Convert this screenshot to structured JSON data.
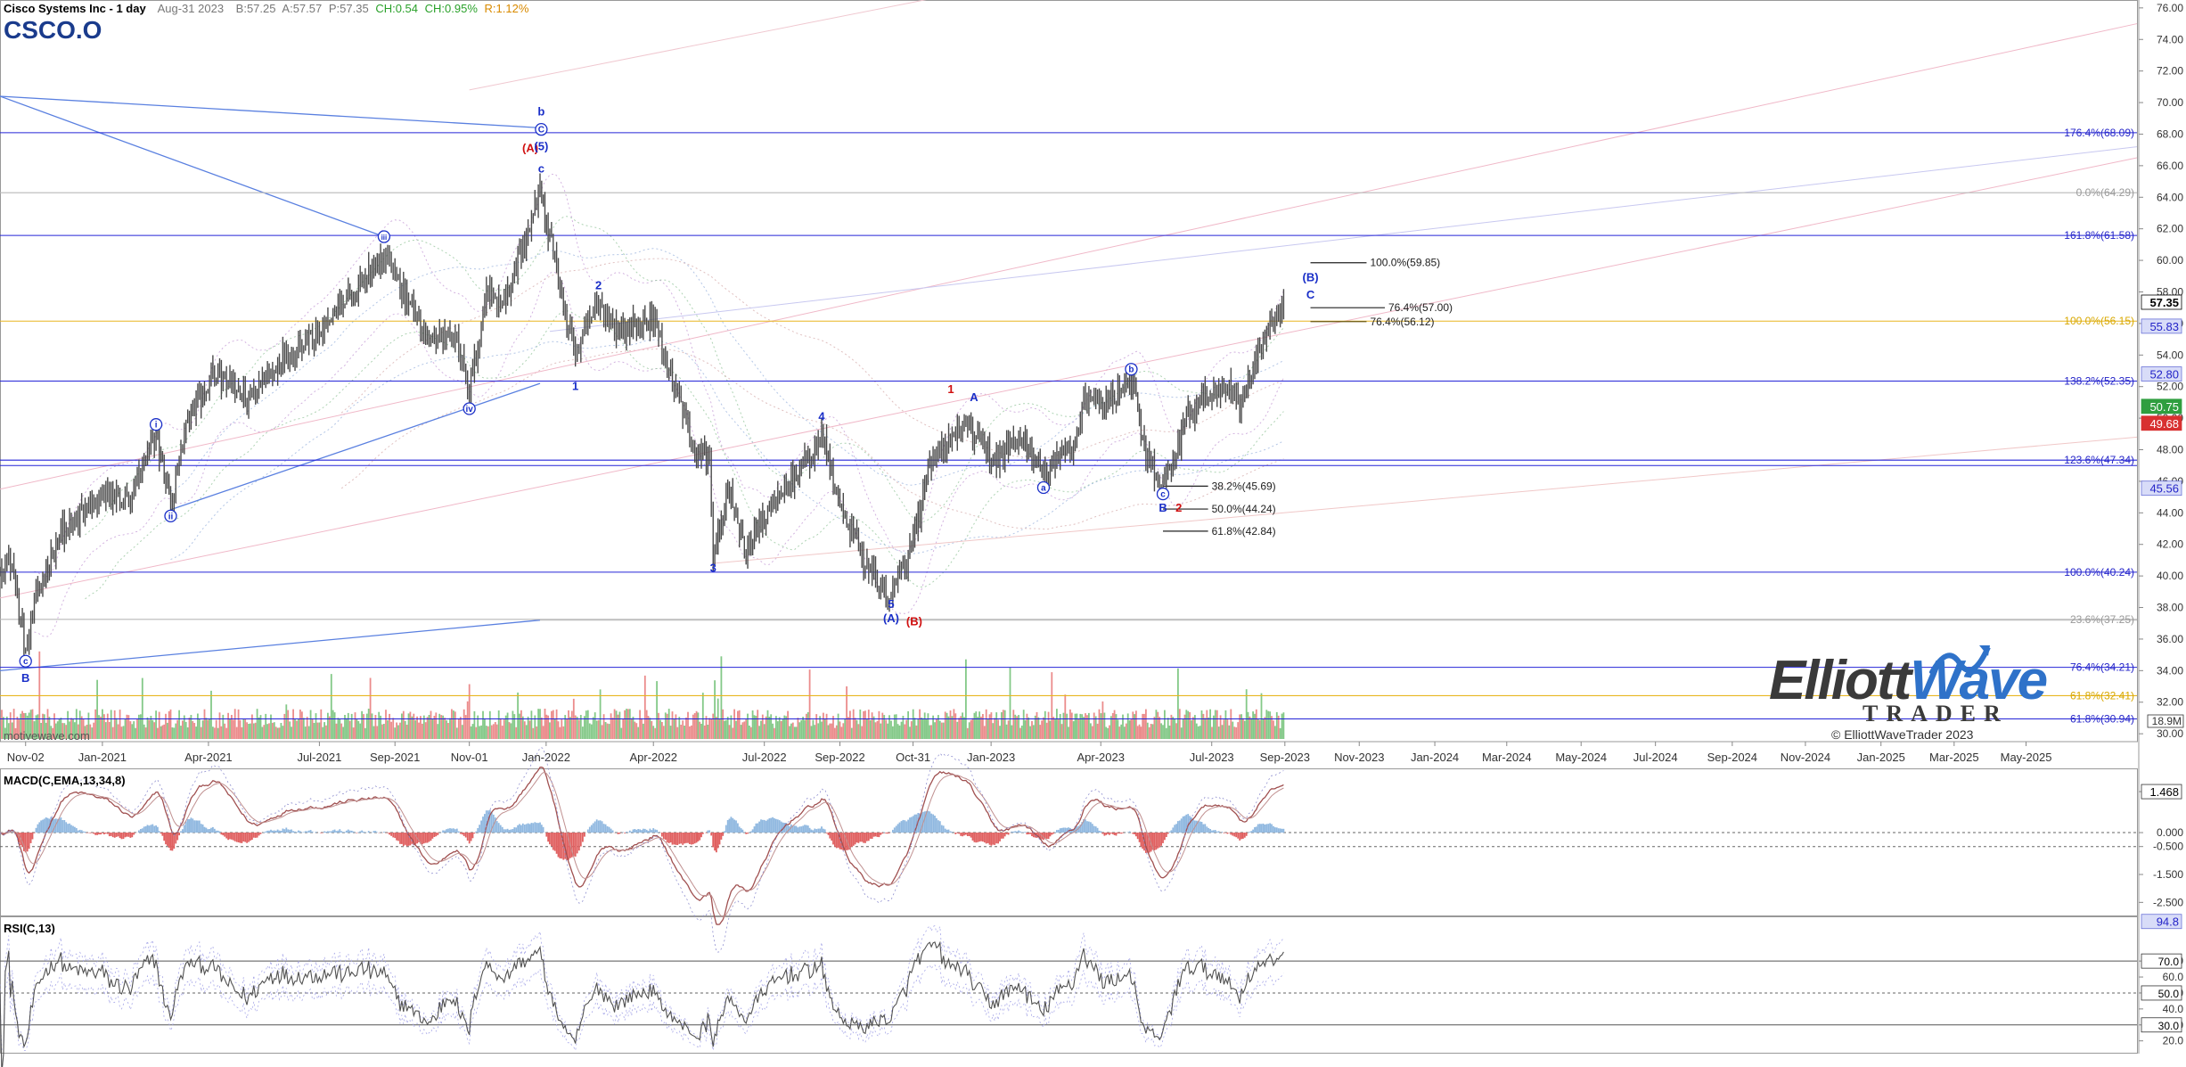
{
  "header": {
    "title": "Cisco Systems Inc - 1 day",
    "date": "Aug-31 2023",
    "bid": "B:57.25",
    "ask": "A:57.57",
    "price": "P:57.35",
    "change": "CH:0.54",
    "change_pct": "CH:0.95%",
    "range": "R:1.12%",
    "symbol": "CSCO.O"
  },
  "watermark": "motivewave.com",
  "logo": {
    "main_a": "Elliott",
    "main_b": "Wave",
    "sub": "TRADER",
    "copyright": "© ElliottWaveTrader 2023"
  },
  "colors": {
    "up": "#6fbf73",
    "down": "#e87878",
    "fib": "#2424d8",
    "fib_gold": "#e8b620",
    "price": "#4a4a4a",
    "wave_blue": "#1a2fc8",
    "wave_red": "#d01010"
  },
  "chart_data": [
    {
      "type": "candlestick",
      "title": "Cisco Systems Inc - 1 day",
      "x_ticks": [
        "Nov-02",
        "Jan-2021",
        "Apr-2021",
        "Jul-2021",
        "Sep-2021",
        "Nov-01",
        "Jan-2022",
        "Apr-2022",
        "Jul-2022",
        "Sep-2022",
        "Oct-31",
        "Jan-2023",
        "Apr-2023",
        "Jul-2023",
        "Sep-2023",
        "Nov-2023",
        "Jan-2024",
        "Mar-2024",
        "May-2024",
        "Jul-2024",
        "Sep-2024",
        "Nov-2024",
        "Jan-2025",
        "Mar-2025",
        "May-2025"
      ],
      "x_range": [
        "2020-10-12",
        "2025-07-31"
      ],
      "y_ticks": [
        30,
        32,
        34,
        36,
        38,
        40,
        42,
        44,
        46,
        48,
        50,
        52,
        54,
        56,
        58,
        60,
        62,
        64,
        66,
        68,
        70,
        72,
        74,
        76
      ],
      "y_range": [
        29.5,
        76.5
      ],
      "price_anchors": [
        {
          "d": "2020-10-12",
          "v": 40.3
        },
        {
          "d": "2020-10-22",
          "v": 40.8
        },
        {
          "d": "2020-10-29",
          "v": 36.9
        },
        {
          "d": "2020-11-02",
          "v": 35.0
        },
        {
          "d": "2020-11-12",
          "v": 39.0
        },
        {
          "d": "2020-12-01",
          "v": 42.8
        },
        {
          "d": "2021-01-04",
          "v": 45.0
        },
        {
          "d": "2021-01-27",
          "v": 44.8
        },
        {
          "d": "2021-02-17",
          "v": 49.0
        },
        {
          "d": "2021-03-01",
          "v": 44.4
        },
        {
          "d": "2021-03-15",
          "v": 50.0
        },
        {
          "d": "2021-04-06",
          "v": 52.8
        },
        {
          "d": "2021-05-04",
          "v": 51.2
        },
        {
          "d": "2021-06-01",
          "v": 53.8
        },
        {
          "d": "2021-07-01",
          "v": 55.6
        },
        {
          "d": "2021-08-23",
          "v": 60.2
        },
        {
          "d": "2021-09-01",
          "v": 59.0
        },
        {
          "d": "2021-09-29",
          "v": 54.8
        },
        {
          "d": "2021-10-19",
          "v": 55.8
        },
        {
          "d": "2021-11-01",
          "v": 51.6
        },
        {
          "d": "2021-11-15",
          "v": 58.0
        },
        {
          "d": "2021-12-01",
          "v": 57.5
        },
        {
          "d": "2021-12-29",
          "v": 64.3
        },
        {
          "d": "2022-01-06",
          "v": 61.5
        },
        {
          "d": "2022-01-27",
          "v": 53.6
        },
        {
          "d": "2022-02-02",
          "v": 55.3
        },
        {
          "d": "2022-02-15",
          "v": 57.4
        },
        {
          "d": "2022-03-03",
          "v": 55.5
        },
        {
          "d": "2022-04-01",
          "v": 56.3
        },
        {
          "d": "2022-05-05",
          "v": 48.0
        },
        {
          "d": "2022-05-17",
          "v": 47.5
        },
        {
          "d": "2022-05-20",
          "v": 41.0
        },
        {
          "d": "2022-06-01",
          "v": 45.5
        },
        {
          "d": "2022-06-16",
          "v": 41.6
        },
        {
          "d": "2022-07-01",
          "v": 43.8
        },
        {
          "d": "2022-08-10",
          "v": 47.8
        },
        {
          "d": "2022-08-17",
          "v": 49.0
        },
        {
          "d": "2022-09-01",
          "v": 44.5
        },
        {
          "d": "2022-09-26",
          "v": 40.2
        },
        {
          "d": "2022-10-13",
          "v": 38.7
        },
        {
          "d": "2022-10-27",
          "v": 41.0
        },
        {
          "d": "2022-11-15",
          "v": 47.2
        },
        {
          "d": "2022-12-12",
          "v": 49.6
        },
        {
          "d": "2023-01-06",
          "v": 47.4
        },
        {
          "d": "2023-01-27",
          "v": 48.8
        },
        {
          "d": "2023-02-15",
          "v": 46.4
        },
        {
          "d": "2023-03-13",
          "v": 48.5
        },
        {
          "d": "2023-03-20",
          "v": 51.2
        },
        {
          "d": "2023-04-06",
          "v": 50.8
        },
        {
          "d": "2023-04-28",
          "v": 52.6
        },
        {
          "d": "2023-05-10",
          "v": 47.4
        },
        {
          "d": "2023-05-24",
          "v": 45.5
        },
        {
          "d": "2023-06-15",
          "v": 50.4
        },
        {
          "d": "2023-07-13",
          "v": 52.2
        },
        {
          "d": "2023-07-26",
          "v": 51.0
        },
        {
          "d": "2023-08-10",
          "v": 54.2
        },
        {
          "d": "2023-08-31",
          "v": 57.35
        }
      ],
      "fib_levels": [
        {
          "label": "176.4%(68.09)",
          "value": 68.09,
          "color": "blue"
        },
        {
          "label": "0.0%(64.29)",
          "value": 64.29,
          "color": "gray"
        },
        {
          "label": "161.8%(61.58)",
          "value": 61.58,
          "color": "blue"
        },
        {
          "label": "100.0%(56.15)",
          "value": 56.15,
          "color": "gold"
        },
        {
          "label": "138.2%(52.35)",
          "value": 52.35,
          "color": "blue"
        },
        {
          "label": "123.6%(47.34)",
          "value": 47.34,
          "color": "blue"
        },
        {
          "label": "100.0%(40.24)",
          "value": 40.24,
          "color": "blue"
        },
        {
          "label": "23.6%(37.25)",
          "value": 37.25,
          "color": "gray"
        },
        {
          "label": "76.4%(34.21)",
          "value": 34.21,
          "color": "blue"
        },
        {
          "label": "61.8%(32.41)",
          "value": 32.41,
          "color": "gold"
        },
        {
          "label": "61.8%(30.94)",
          "value": 30.94,
          "color": "blue"
        }
      ],
      "target_levels": [
        {
          "label": "100.0%(59.85)",
          "value": 59.85
        },
        {
          "label": "76.4%(57.00)",
          "value": 57.0
        },
        {
          "label": "76.4%(56.12)",
          "value": 56.12
        },
        {
          "label": "38.2%(45.69)",
          "value": 45.69
        },
        {
          "label": "50.0%(44.24)",
          "value": 44.24
        },
        {
          "label": "61.8%(42.84)",
          "value": 42.84
        }
      ],
      "price_badges": [
        {
          "label": "57.35",
          "value": 57.35,
          "style": "current"
        },
        {
          "label": "55.83",
          "value": 55.83,
          "style": "blue"
        },
        {
          "label": "52.80",
          "value": 52.8,
          "style": "blue"
        },
        {
          "label": "50.75",
          "value": 50.75,
          "style": "green"
        },
        {
          "label": "49.68",
          "value": 49.68,
          "style": "red"
        },
        {
          "label": "45.56",
          "value": 45.56,
          "style": "blue"
        }
      ],
      "wave_labels": [
        {
          "t": "c",
          "d": "2020-11-02",
          "v": 34.6,
          "s": "circle",
          "c": "blue"
        },
        {
          "t": "B",
          "d": "2020-11-02",
          "v": 33.5,
          "s": "plain",
          "c": "blue"
        },
        {
          "t": "i",
          "d": "2021-02-17",
          "v": 49.6,
          "s": "circle",
          "c": "blue"
        },
        {
          "t": "ii",
          "d": "2021-03-01",
          "v": 43.8,
          "s": "circle",
          "c": "blue"
        },
        {
          "t": "iii",
          "d": "2021-08-23",
          "v": 61.5,
          "s": "circle",
          "c": "blue"
        },
        {
          "t": "iv",
          "d": "2021-11-01",
          "v": 50.6,
          "s": "circle",
          "c": "blue"
        },
        {
          "t": "(A)",
          "d": "2021-12-21",
          "v": 67.1,
          "s": "plain",
          "c": "red"
        },
        {
          "t": "b",
          "d": "2021-12-30",
          "v": 69.4,
          "s": "plain",
          "c": "blue"
        },
        {
          "t": "C",
          "d": "2021-12-30",
          "v": 68.3,
          "s": "circle",
          "c": "blue"
        },
        {
          "t": "(5)",
          "d": "2021-12-30",
          "v": 67.2,
          "s": "plain",
          "c": "blue"
        },
        {
          "t": "c",
          "d": "2021-12-30",
          "v": 65.8,
          "s": "plain",
          "c": "blue"
        },
        {
          "t": "2",
          "d": "2022-02-15",
          "v": 58.4,
          "s": "plain",
          "c": "blue"
        },
        {
          "t": "1",
          "d": "2022-01-27",
          "v": 52.0,
          "s": "plain",
          "c": "blue"
        },
        {
          "t": "4",
          "d": "2022-08-17",
          "v": 50.1,
          "s": "plain",
          "c": "blue"
        },
        {
          "t": "3",
          "d": "2022-05-20",
          "v": 40.5,
          "s": "plain",
          "c": "blue"
        },
        {
          "t": "5",
          "d": "2022-10-13",
          "v": 38.2,
          "s": "plain",
          "c": "blue"
        },
        {
          "t": "(A)",
          "d": "2022-10-13",
          "v": 37.3,
          "s": "plain",
          "c": "blue"
        },
        {
          "t": "(B)",
          "d": "2022-11-01",
          "v": 37.1,
          "s": "plain",
          "c": "red"
        },
        {
          "t": "1",
          "d": "2022-12-01",
          "v": 51.8,
          "s": "plain",
          "c": "red"
        },
        {
          "t": "A",
          "d": "2022-12-20",
          "v": 51.3,
          "s": "plain",
          "c": "blue"
        },
        {
          "t": "a",
          "d": "2023-02-15",
          "v": 45.6,
          "s": "circle",
          "c": "blue"
        },
        {
          "t": "b",
          "d": "2023-04-28",
          "v": 53.1,
          "s": "circle",
          "c": "blue"
        },
        {
          "t": "c",
          "d": "2023-05-24",
          "v": 45.2,
          "s": "circle",
          "c": "blue"
        },
        {
          "t": "B",
          "d": "2023-05-24",
          "v": 44.3,
          "s": "plain",
          "c": "blue"
        },
        {
          "t": "2",
          "d": "2023-06-06",
          "v": 44.3,
          "s": "plain",
          "c": "red"
        },
        {
          "t": "(B)",
          "d": "2023-09-22",
          "v": 58.9,
          "s": "plain",
          "c": "blue"
        },
        {
          "t": "C",
          "d": "2023-09-22",
          "v": 57.8,
          "s": "plain",
          "c": "blue"
        }
      ]
    },
    {
      "type": "line",
      "title": "MACD(C,EMA,13,34,8)",
      "y_ticks": [
        1.468,
        0.0,
        -0.5,
        -1.5,
        -2.5
      ],
      "y_range": [
        -3.0,
        2.3
      ],
      "last_value": "1.468"
    },
    {
      "type": "line",
      "title": "RSI(C,13)",
      "y_ticks": [
        70.0,
        60.0,
        50.0,
        40.0,
        30.0,
        20.0
      ],
      "y_range": [
        12,
        98
      ],
      "last_value": "94.8"
    }
  ]
}
